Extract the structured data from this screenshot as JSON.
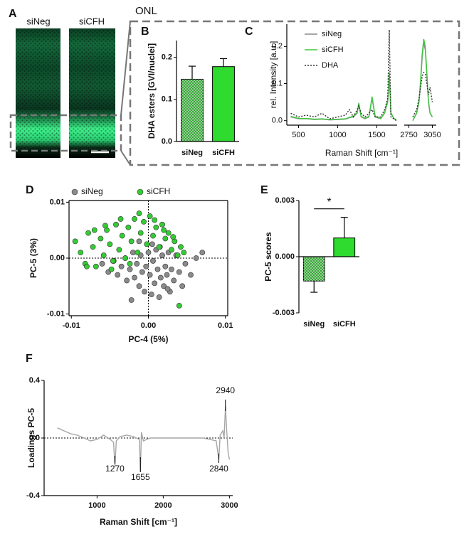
{
  "panel_a": {
    "label": "A",
    "images": [
      "siNeg",
      "siCFH"
    ],
    "inset_label": "ONL"
  },
  "chart_data": [
    {
      "type": "bar",
      "panel": "B",
      "y_label": "DHA esters [GVI/nuclei]",
      "categories": [
        "siNeg",
        "siCFH"
      ],
      "values": [
        0.148,
        0.178
      ],
      "errors": [
        0.031,
        0.019
      ],
      "colors": [
        "#3aa63a",
        "#2edb2e"
      ],
      "checkered": [
        true,
        false
      ],
      "ylim": [
        0,
        0.24
      ],
      "yticks": [
        {
          "value": 0,
          "label": "0.0"
        },
        0.1,
        0.2
      ]
    },
    {
      "type": "line",
      "panel": "C",
      "y_label": "rel. Intensity [a.u.]",
      "x_label": "Raman Shift [cm⁻¹]",
      "x": [
        400,
        500,
        600,
        700,
        800,
        900,
        1000,
        1100,
        1150,
        1200,
        1250,
        1270,
        1300,
        1350,
        1400,
        1440,
        1480,
        1550,
        1600,
        1640,
        1660,
        1680,
        1720,
        1750,
        2800,
        2850,
        2880,
        2900,
        2920,
        2940,
        2960,
        2980,
        3000,
        3020,
        3050
      ],
      "series": [
        {
          "name": "siNeg",
          "color": "#8c8c8c",
          "values": [
            0.01,
            0.005,
            0.005,
            0.003,
            0.004,
            0.002,
            0.003,
            0.004,
            0.008,
            0.01,
            0.02,
            0.045,
            0.01,
            0.005,
            0.01,
            0.06,
            0.01,
            0.005,
            0.02,
            0.05,
            0.12,
            0.02,
            0.005,
            0.002,
            0.0,
            0.02,
            0.05,
            0.1,
            0.17,
            0.21,
            0.19,
            0.12,
            0.05,
            0.02,
            0.01
          ]
        },
        {
          "name": "siCFH",
          "color": "#3cc83c",
          "values": [
            0.012,
            0.006,
            0.006,
            0.004,
            0.005,
            0.003,
            0.004,
            0.005,
            0.009,
            0.012,
            0.022,
            0.048,
            0.012,
            0.006,
            0.012,
            0.065,
            0.012,
            0.006,
            0.022,
            0.055,
            0.13,
            0.022,
            0.006,
            0.003,
            0.0,
            0.022,
            0.055,
            0.11,
            0.18,
            0.22,
            0.2,
            0.13,
            0.055,
            0.022,
            0.01
          ]
        },
        {
          "name": "DHA",
          "color": "#333333",
          "style": "dotted",
          "values": [
            0.02,
            0.01,
            0.015,
            0.01,
            0.02,
            0.005,
            0.01,
            0.015,
            0.03,
            0.01,
            0.03,
            0.04,
            0.02,
            0.01,
            0.02,
            0.03,
            0.01,
            0.01,
            0.03,
            0.06,
            0.245,
            0.01,
            0.005,
            0.0,
            0.01,
            0.03,
            0.06,
            0.09,
            0.12,
            0.13,
            0.125,
            0.1,
            0.07,
            0.09,
            0.05
          ]
        }
      ],
      "xlim": [
        350,
        3100
      ],
      "xbreak": [
        1760,
        2690
      ],
      "xticks": [
        500,
        1000,
        1500,
        2750,
        3050
      ],
      "ylim": [
        -0.012,
        0.26
      ],
      "yticks": [
        {
          "value": 0,
          "label": "0.0"
        },
        0.1,
        0.2
      ]
    },
    {
      "type": "scatter",
      "panel": "D",
      "x_label": "PC-4 (5%)",
      "y_label": "PC-5 (3%)",
      "series": [
        {
          "name": "siNeg",
          "color": "#8a8a8a",
          "x": [
            -0.006,
            -0.0052,
            -0.0045,
            -0.004,
            -0.0035,
            -0.003,
            -0.0028,
            -0.0024,
            -0.002,
            -0.0018,
            -0.0015,
            -0.0012,
            -0.001,
            -0.0008,
            -0.0005,
            -0.0003,
            0,
            0.0002,
            0.0004,
            0.0006,
            0.0008,
            0.001,
            0.0012,
            0.0014,
            0.0016,
            0.0018,
            0.002,
            0.0022,
            0.0024,
            0.0026,
            0.0028,
            0.003,
            0.0033,
            0.0036,
            0.004,
            0.0044,
            0.0048,
            0.0055,
            0.0062,
            0.007,
            -0.0022,
            0.0005,
            0.0015,
            0.0025,
            -0.0012
          ],
          "y": [
            -0.001,
            -0.0025,
            -0.0005,
            -0.003,
            -0.0015,
            0,
            -0.004,
            -0.002,
            0.001,
            -0.0035,
            -0.001,
            -0.005,
            0.0005,
            -0.0025,
            -0.006,
            -0.0015,
            0.001,
            -0.003,
            -0.0065,
            -0.0005,
            -0.0045,
            0.0015,
            -0.002,
            -0.007,
            -0.0035,
            0.0005,
            -0.005,
            -0.0015,
            -0.003,
            0.001,
            -0.006,
            -0.002,
            -0.004,
            0.0005,
            -0.0025,
            -0.005,
            -0.001,
            -0.003,
            0,
            0.001,
            -0.0075,
            0.0025,
            0.002,
            -0.0055,
            0.003
          ]
        },
        {
          "name": "siCFH",
          "color": "#33cc33",
          "x": [
            -0.0095,
            -0.0088,
            -0.0082,
            -0.0078,
            -0.0072,
            -0.0068,
            -0.0062,
            -0.0058,
            -0.0054,
            -0.005,
            -0.0046,
            -0.0042,
            -0.0038,
            -0.0034,
            -0.003,
            -0.0026,
            -0.0022,
            -0.0018,
            -0.0014,
            -0.001,
            -0.0006,
            -0.0002,
            0.0002,
            0.0006,
            0.001,
            0.0014,
            0.0018,
            0.0022,
            0.0026,
            0.003,
            0.0034,
            0.0038,
            0.0042,
            0.0046,
            -0.007,
            -0.0048,
            -0.0036,
            -0.0024,
            -0.0012,
            0.0008,
            0.002,
            0.0032,
            -0.008,
            0.004,
            -0.0056
          ],
          "y": [
            0.003,
            0.001,
            -0.001,
            0.0045,
            0.002,
            -0.0015,
            0.0035,
            0.0005,
            0.005,
            0.0025,
            -0.0005,
            0.006,
            0.0015,
            0.004,
            0,
            0.0055,
            0.003,
            0.007,
            0.001,
            0.0045,
            0.0065,
            0.0025,
            0.0075,
            0.004,
            0.0055,
            0.002,
            0.006,
            0.0035,
            0.0045,
            0.0015,
            0.003,
            0.0005,
            0.002,
            0.001,
            0.005,
            -0.002,
            0.007,
            -0.001,
            0.008,
            0.0068,
            0.005,
            0.0038,
            -0.0015,
            -0.0085,
            0.0058
          ]
        }
      ],
      "xlim": [
        -0.0103,
        0.0103
      ],
      "xticks": [
        -0.01,
        {
          "value": 0,
          "label": "0.00"
        },
        0.01
      ],
      "ylim": [
        -0.0103,
        0.0103
      ],
      "yticks": [
        -0.01,
        {
          "value": 0,
          "label": "0.00"
        },
        0.01
      ],
      "zero_lines": true
    },
    {
      "type": "bar",
      "panel": "E",
      "y_label": "PC-5 scores",
      "annotation": "*",
      "categories": [
        "siNeg",
        "siCFH"
      ],
      "values": [
        -0.0013,
        0.001
      ],
      "errors": [
        0.0006,
        0.0011
      ],
      "colors": [
        "#3aa63a",
        "#2edb2e"
      ],
      "checkered": [
        true,
        false
      ],
      "ylim": [
        -0.003,
        0.003
      ],
      "yticks": [
        -0.003,
        {
          "value": 0,
          "label": "0.000"
        },
        0.003
      ]
    },
    {
      "type": "line",
      "panel": "F",
      "y_label": "Loadings PC-5",
      "x_label": "Raman Shift [cm⁻¹]",
      "x": [
        400,
        500,
        600,
        700,
        800,
        900,
        1000,
        1100,
        1200,
        1250,
        1270,
        1290,
        1350,
        1450,
        1550,
        1640,
        1655,
        1670,
        1700,
        1800,
        2000,
        2200,
        2400,
        2600,
        2800,
        2840,
        2860,
        2900,
        2920,
        2940,
        2960,
        2980,
        3000
      ],
      "values": [
        0.07,
        0.05,
        0.03,
        0.02,
        0.0,
        -0.02,
        -0.01,
        0.02,
        -0.01,
        -0.03,
        -0.2,
        -0.02,
        0.01,
        0.02,
        0.01,
        -0.01,
        -0.23,
        0.04,
        -0.02,
        0.0,
        0.0,
        0.0,
        0.0,
        0.0,
        -0.02,
        -0.15,
        0.02,
        0.05,
        0.0,
        0.22,
        0.05,
        -0.1,
        -0.15
      ],
      "color": "#a6a6a6",
      "peak_labels": [
        1270,
        1655,
        2840,
        2940
      ],
      "xlim": [
        200,
        3050
      ],
      "xticks": [
        1000,
        2000,
        3000
      ],
      "ylim": [
        -0.4,
        0.4
      ],
      "yticks": [
        -0.4,
        {
          "value": 0,
          "label": "0.0"
        },
        0.4
      ],
      "zero_lines": true
    }
  ]
}
